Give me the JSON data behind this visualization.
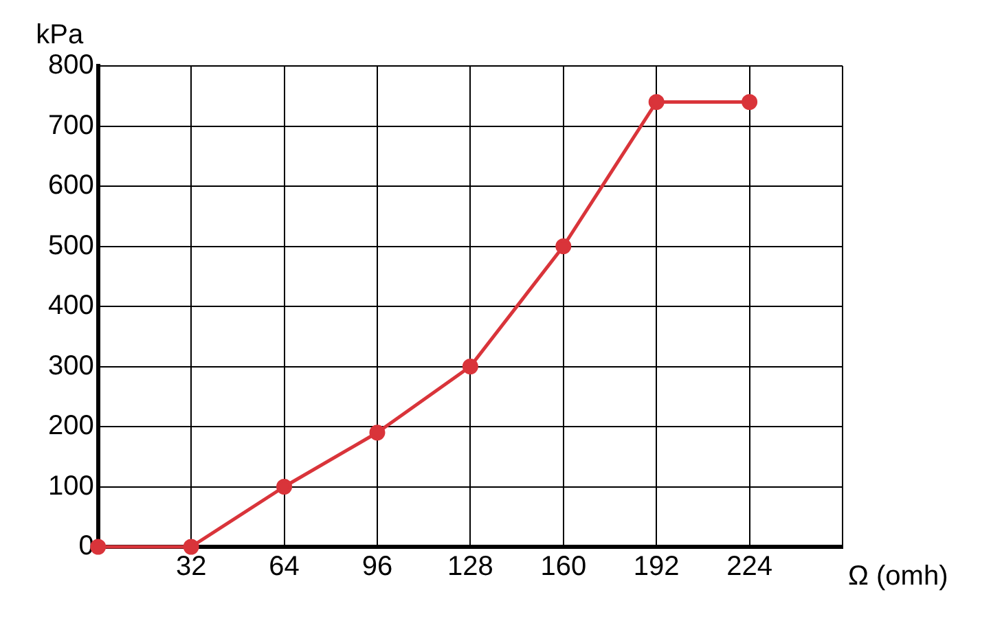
{
  "chart_data": {
    "type": "line",
    "xlabel": "Ω (omh)",
    "ylabel": "kPa",
    "x": [
      0,
      32,
      64,
      96,
      128,
      160,
      192,
      224
    ],
    "series": [
      {
        "color": "#d9343a",
        "values": [
          0,
          0,
          100,
          190,
          300,
          500,
          740,
          740
        ]
      }
    ],
    "xlim": [
      0,
      256
    ],
    "xticks": [
      {
        "value": 0,
        "label": null
      },
      32,
      64,
      96,
      128,
      160,
      192,
      224,
      {
        "value": 256,
        "label": null
      }
    ],
    "ylim": [
      0,
      800
    ],
    "yticks": [
      0,
      100,
      200,
      300,
      400,
      500,
      600,
      700,
      800
    ],
    "grid": true,
    "legend": false,
    "marker": "circle",
    "line_style": "solid"
  }
}
